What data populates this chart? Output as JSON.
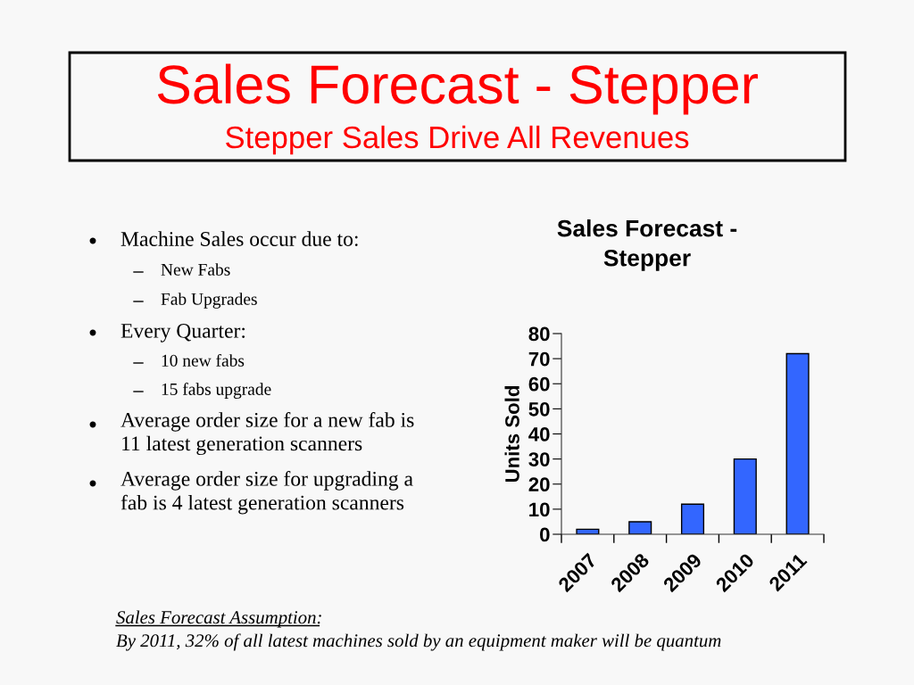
{
  "chart_data": {
    "type": "bar",
    "title": "Sales Forecast - Stepper",
    "subtitle": "Stepper Sales Drive All Revenues",
    "ylabel": "Units Sold",
    "categories": [
      "2007",
      "2008",
      "2009",
      "2010",
      "2011"
    ],
    "values": [
      2,
      5,
      12,
      30,
      72
    ],
    "color": "#3366ff",
    "ylim": [
      0,
      80
    ],
    "yticks": [
      0,
      10,
      20,
      30,
      40,
      50,
      60,
      70,
      80
    ],
    "annotations": [
      "Sales Forecast -\nStepper",
      "Machine Sales occur due to:",
      "New Fabs",
      "Fab Upgrades",
      "Every Quarter:",
      "10 new fabs",
      "15 fabs upgrade",
      "Average order size for a new fab is\n11 latest generation scanners",
      "Average order size for upgrading a\nfab is 4 latest generation scanners",
      "Sales Forecast Assumption:",
      "By 2011, 32% of all latest machines sold by an equipment maker will be quantum"
    ]
  }
}
